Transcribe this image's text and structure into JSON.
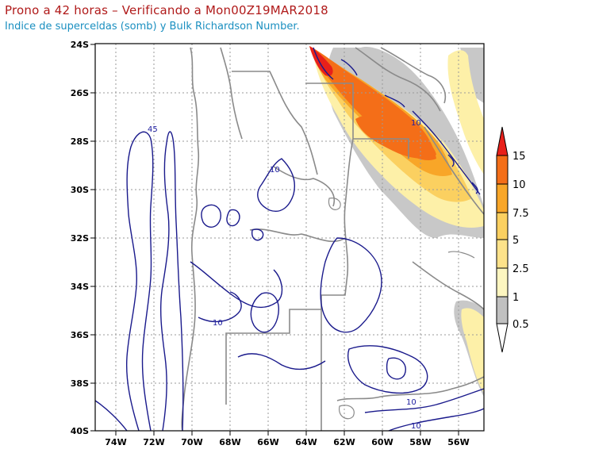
{
  "header": {
    "title": "Prono a 42 horas – Verificando a Mon00Z19MAR2018",
    "subtitle": "Indice de superceldas (somb) y Bulk Richardson Number."
  },
  "axes": {
    "lat_labels": [
      "24S",
      "26S",
      "28S",
      "30S",
      "32S",
      "34S",
      "36S",
      "38S",
      "40S"
    ],
    "lon_labels": [
      "74W",
      "72W",
      "70W",
      "68W",
      "66W",
      "64W",
      "62W",
      "60W",
      "58W",
      "56W"
    ]
  },
  "colorbar": {
    "labels": [
      "15",
      "10",
      "7.5",
      "5",
      "2.5",
      "1",
      "0.5"
    ],
    "colors": [
      "#e8201a",
      "#f46e18",
      "#f8a628",
      "#fbd060",
      "#fdf0a8",
      "#ffffff",
      "#c0c0c0"
    ]
  },
  "contour_labels": [
    "45",
    "10",
    "10",
    "10",
    "10",
    "10"
  ],
  "colors": {
    "contour": "#1a1a8c",
    "borders": "#8a8a8a",
    "grid": "#9a9a9a",
    "title": "#b01a1a",
    "subtitle": "#1a8fc0"
  }
}
